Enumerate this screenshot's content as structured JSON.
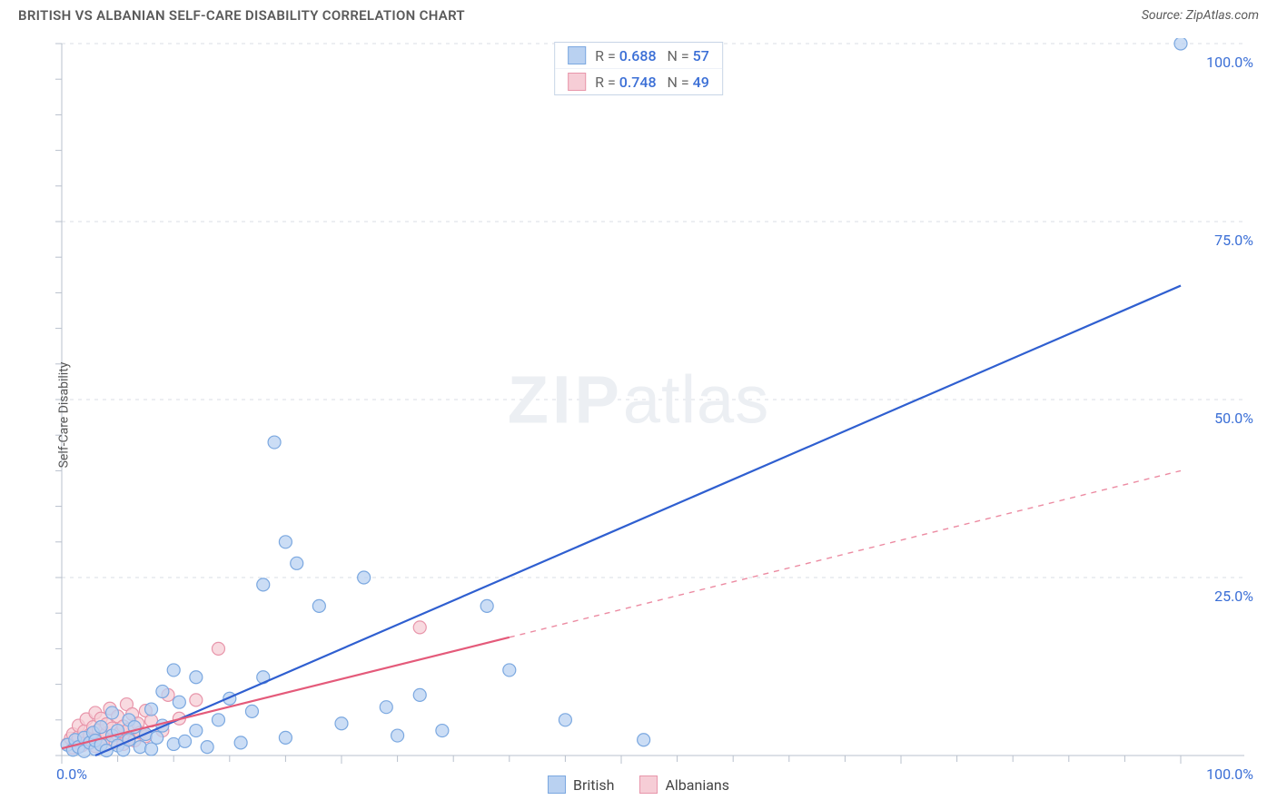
{
  "title": "BRITISH VS ALBANIAN SELF-CARE DISABILITY CORRELATION CHART",
  "source_prefix": "Source: ",
  "source": "ZipAtlas.com",
  "ylabel": "Self-Care Disability",
  "watermark_bold": "ZIP",
  "watermark_rest": "atlas",
  "chart": {
    "type": "scatter",
    "xlim": [
      0,
      100
    ],
    "ylim": [
      0,
      100
    ],
    "x_ticks": [
      0,
      100
    ],
    "y_ticks": [
      25,
      50,
      75,
      100
    ],
    "x_tick_labels": [
      "0.0%",
      "100.0%"
    ],
    "y_tick_labels": [
      "25.0%",
      "50.0%",
      "75.0%",
      "100.0%"
    ],
    "grid_color": "#d8dde5",
    "grid_dash": "4 5",
    "axis_color": "#b8c0cc",
    "axis_label_color": "#3b6fd6",
    "background_color": "#ffffff",
    "tick_len": 7,
    "marker_radius": 7,
    "marker_stroke_width": 1.2,
    "line_width": 2.2,
    "dash_pattern": "6 6",
    "series": [
      {
        "name": "British",
        "label": "British",
        "fill": "#b9d1f1",
        "stroke": "#7ba8e0",
        "line_color": "#2f5fd0",
        "R": "0.688",
        "N": "57",
        "regression": {
          "x1": 3,
          "y1": 0,
          "x2": 100,
          "y2": 66,
          "solid_until_x": 100
        },
        "points": [
          [
            0.5,
            1.5
          ],
          [
            1,
            0.8
          ],
          [
            1.2,
            2.2
          ],
          [
            1.5,
            1.2
          ],
          [
            2,
            0.6
          ],
          [
            2,
            2.5
          ],
          [
            2.5,
            1.8
          ],
          [
            2.8,
            3.2
          ],
          [
            3,
            0.9
          ],
          [
            3,
            2.1
          ],
          [
            3.5,
            1.5
          ],
          [
            3.5,
            4
          ],
          [
            4,
            0.7
          ],
          [
            4.5,
            2.8
          ],
          [
            4.5,
            6
          ],
          [
            5,
            1.4
          ],
          [
            5,
            3.5
          ],
          [
            5.5,
            0.8
          ],
          [
            6,
            2.2
          ],
          [
            6,
            5
          ],
          [
            6.5,
            4
          ],
          [
            7,
            1.2
          ],
          [
            7.5,
            3
          ],
          [
            8,
            0.9
          ],
          [
            8,
            6.5
          ],
          [
            8.5,
            2.5
          ],
          [
            9,
            4.2
          ],
          [
            9,
            9
          ],
          [
            10,
            1.6
          ],
          [
            10,
            12
          ],
          [
            10.5,
            7.5
          ],
          [
            11,
            2
          ],
          [
            12,
            3.5
          ],
          [
            12,
            11
          ],
          [
            13,
            1.2
          ],
          [
            14,
            5
          ],
          [
            15,
            8
          ],
          [
            16,
            1.8
          ],
          [
            17,
            6.2
          ],
          [
            18,
            11
          ],
          [
            18,
            24
          ],
          [
            19,
            44
          ],
          [
            20,
            2.5
          ],
          [
            20,
            30
          ],
          [
            21,
            27
          ],
          [
            23,
            21
          ],
          [
            25,
            4.5
          ],
          [
            27,
            25
          ],
          [
            29,
            6.8
          ],
          [
            30,
            2.8
          ],
          [
            32,
            8.5
          ],
          [
            34,
            3.5
          ],
          [
            38,
            21
          ],
          [
            40,
            12
          ],
          [
            45,
            5
          ],
          [
            52,
            2.2
          ],
          [
            100,
            100
          ]
        ]
      },
      {
        "name": "Albanians",
        "label": "Albanians",
        "fill": "#f6cdd6",
        "stroke": "#e896ab",
        "line_color": "#e45a7a",
        "R": "0.748",
        "N": "49",
        "regression": {
          "x1": 0,
          "y1": 1,
          "x2": 100,
          "y2": 40,
          "solid_until_x": 40
        },
        "points": [
          [
            0.5,
            1.6
          ],
          [
            0.8,
            2.4
          ],
          [
            1,
            1.1
          ],
          [
            1,
            3
          ],
          [
            1.3,
            1.9
          ],
          [
            1.5,
            2.6
          ],
          [
            1.5,
            4.2
          ],
          [
            1.8,
            1.4
          ],
          [
            2,
            2.1
          ],
          [
            2,
            3.4
          ],
          [
            2.2,
            5.1
          ],
          [
            2.5,
            1.7
          ],
          [
            2.5,
            2.9
          ],
          [
            2.8,
            4
          ],
          [
            3,
            1.3
          ],
          [
            3,
            2.3
          ],
          [
            3,
            6
          ],
          [
            3.3,
            3.6
          ],
          [
            3.5,
            1.9
          ],
          [
            3.5,
            5.2
          ],
          [
            3.8,
            2.7
          ],
          [
            4,
            1.5
          ],
          [
            4,
            3.1
          ],
          [
            4,
            4.4
          ],
          [
            4.3,
            6.6
          ],
          [
            4.5,
            2.2
          ],
          [
            4.5,
            3.8
          ],
          [
            4.8,
            1.8
          ],
          [
            5,
            2.9
          ],
          [
            5,
            5.5
          ],
          [
            5.3,
            3.4
          ],
          [
            5.5,
            1.6
          ],
          [
            5.5,
            4.1
          ],
          [
            5.8,
            7.2
          ],
          [
            6,
            2.5
          ],
          [
            6,
            3.7
          ],
          [
            6.3,
            5.8
          ],
          [
            6.5,
            2.1
          ],
          [
            6.8,
            4.5
          ],
          [
            7,
            3.2
          ],
          [
            7.5,
            2.7
          ],
          [
            7.5,
            6.3
          ],
          [
            8,
            4.9
          ],
          [
            9,
            3.5
          ],
          [
            9.5,
            8.5
          ],
          [
            10.5,
            5.2
          ],
          [
            12,
            7.8
          ],
          [
            14,
            15
          ],
          [
            32,
            18
          ]
        ]
      }
    ]
  },
  "legend_top": {
    "R_label": "R =",
    "N_label": "N ="
  },
  "legend_bottom_labels": [
    "British",
    "Albanians"
  ]
}
